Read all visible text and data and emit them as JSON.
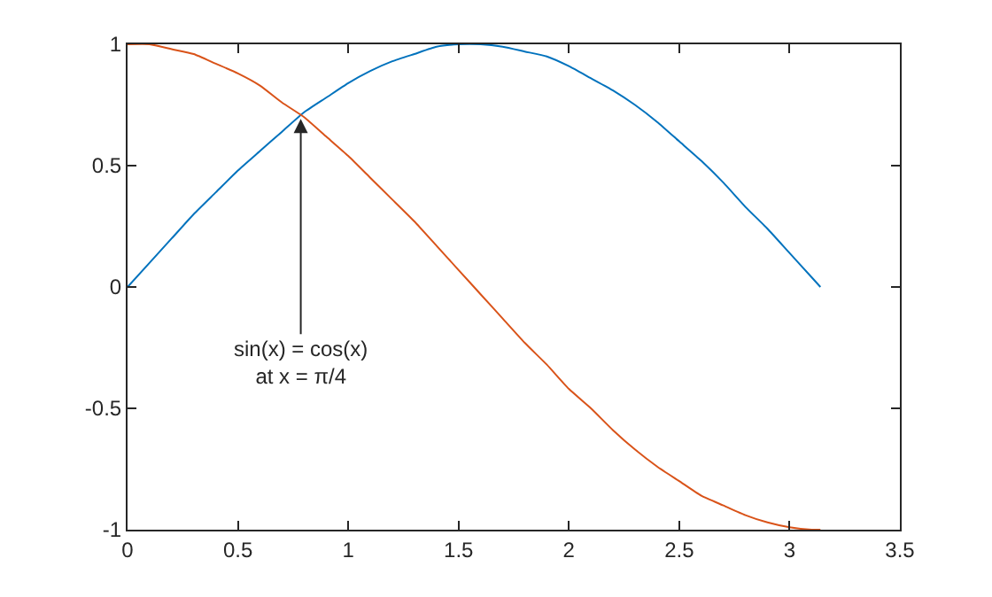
{
  "chart_data": {
    "type": "line",
    "x": [
      0,
      0.1,
      0.2,
      0.3,
      0.4,
      0.5,
      0.6,
      0.7,
      0.8,
      0.9,
      1.0,
      1.1,
      1.2,
      1.3,
      1.4,
      1.5,
      1.6,
      1.7,
      1.8,
      1.9,
      2.0,
      2.1,
      2.2,
      2.3,
      2.4,
      2.5,
      2.6,
      2.7,
      2.8,
      2.9,
      3.0,
      3.1,
      3.14
    ],
    "series": [
      {
        "color": "#0072bd",
        "values": [
          0,
          0.1,
          0.2,
          0.3,
          0.39,
          0.48,
          0.56,
          0.64,
          0.72,
          0.78,
          0.84,
          0.89,
          0.93,
          0.96,
          0.99,
          1,
          1,
          0.99,
          0.97,
          0.95,
          0.91,
          0.86,
          0.81,
          0.75,
          0.68,
          0.6,
          0.52,
          0.43,
          0.33,
          0.24,
          0.14,
          0.04,
          0
        ]
      },
      {
        "color": "#d95319",
        "values": [
          1,
          1,
          0.98,
          0.96,
          0.92,
          0.88,
          0.83,
          0.76,
          0.7,
          0.62,
          0.54,
          0.45,
          0.36,
          0.27,
          0.17,
          0.07,
          -0.03,
          -0.13,
          -0.23,
          -0.32,
          -0.42,
          -0.5,
          -0.59,
          -0.67,
          -0.74,
          -0.8,
          -0.86,
          -0.9,
          -0.94,
          -0.97,
          -0.99,
          -1,
          -1
        ]
      }
    ],
    "xlim": [
      0,
      3.5
    ],
    "xticks": [
      0,
      0.5,
      1,
      1.5,
      2,
      2.5,
      3,
      3.5
    ],
    "ylim": [
      -1,
      1
    ],
    "yticks": [
      -1,
      -0.5,
      0,
      0.5,
      1
    ],
    "marker": "none",
    "line_style": "solid",
    "annotations": [
      {
        "text": "sin(x) = cos(x)\nat x = π/4",
        "x": 0.785,
        "y": 0.707
      }
    ]
  }
}
